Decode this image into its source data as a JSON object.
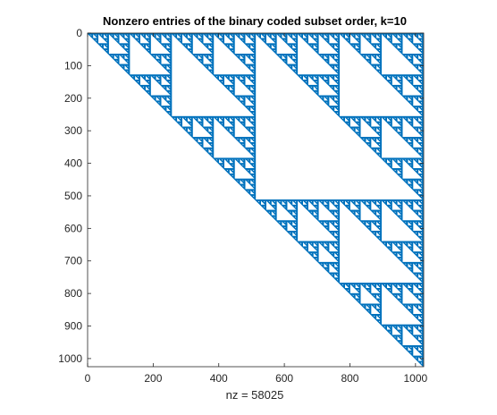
{
  "chart_data": {
    "type": "spy",
    "title": "Nonzero entries of the binary coded subset order, k=10",
    "xlabel": "nz = 58025",
    "ylabel": "",
    "k": 10,
    "matrix_size": 1024,
    "nonzeros": 58025,
    "xlim": [
      0,
      1025
    ],
    "ylim": [
      0,
      1025
    ],
    "y_reversed": true,
    "x_ticks": [
      "0",
      "200",
      "400",
      "600",
      "800",
      "1000"
    ],
    "x_tick_values": [
      0,
      200,
      400,
      600,
      800,
      1000
    ],
    "y_ticks": [
      "0",
      "100",
      "200",
      "300",
      "400",
      "500",
      "600",
      "700",
      "800",
      "900",
      "1000"
    ],
    "y_tick_values": [
      0,
      100,
      200,
      300,
      400,
      500,
      600,
      700,
      800,
      900,
      1000
    ],
    "marker_color": "#0072bd",
    "grid": false
  }
}
